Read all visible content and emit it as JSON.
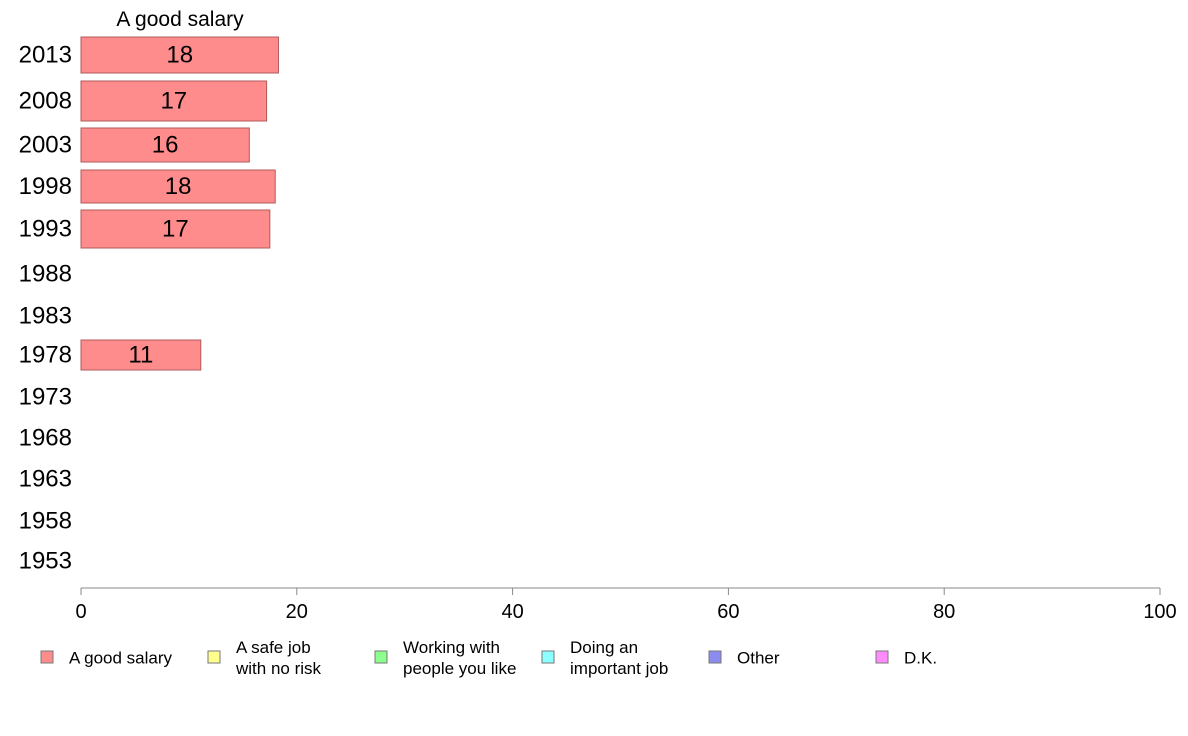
{
  "chart_data": {
    "type": "bar",
    "orientation": "horizontal",
    "title": "A good salary",
    "categories": [
      "2013",
      "2008",
      "2003",
      "1998",
      "1993",
      "1988",
      "1983",
      "1978",
      "1973",
      "1968",
      "1963",
      "1958",
      "1953"
    ],
    "series": [
      {
        "name": "A good salary",
        "color": "#ff8c8c",
        "values": [
          18.3,
          17.2,
          15.6,
          18.0,
          17.5,
          null,
          null,
          11.1,
          null,
          null,
          null,
          null,
          null
        ],
        "labels": [
          "18",
          "17",
          "16",
          "18",
          "17",
          "",
          "",
          "11",
          "",
          "",
          "",
          "",
          ""
        ]
      }
    ],
    "xlim": [
      0,
      100
    ],
    "xticks": [
      "0",
      "20",
      "40",
      "60",
      "80",
      "100"
    ],
    "legend": {
      "placement": "bottom",
      "items": [
        {
          "lines": [
            "A good salary"
          ],
          "color": "#ff8c8c"
        },
        {
          "lines": [
            "A safe job",
            "with no risk"
          ],
          "color": "#ffff8c"
        },
        {
          "lines": [
            "Working with",
            "people you like"
          ],
          "color": "#8cff8c"
        },
        {
          "lines": [
            "Doing an",
            "important job"
          ],
          "color": "#8cffff"
        },
        {
          "lines": [
            "Other"
          ],
          "color": "#8c8cf0"
        },
        {
          "lines": [
            "D.K."
          ],
          "color": "#ff8cff"
        }
      ]
    }
  }
}
